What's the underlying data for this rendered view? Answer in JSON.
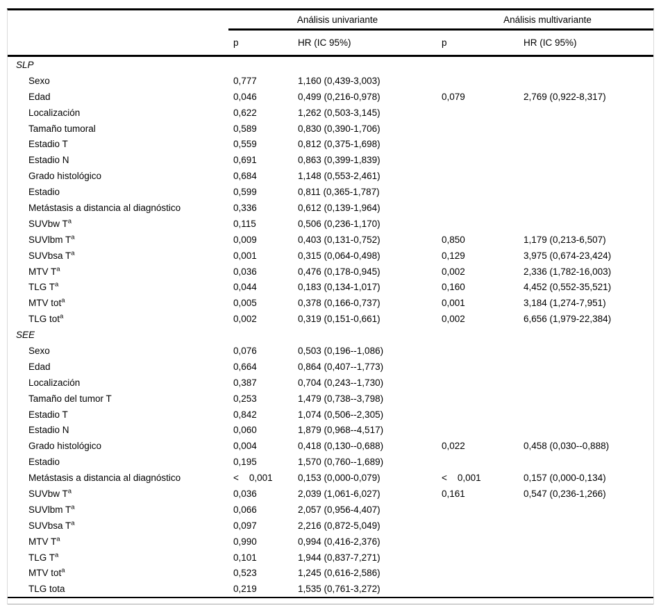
{
  "colors": {
    "text": "#000000",
    "rule": "#000000",
    "frame_side_border": "#d9d9d9",
    "bottom_thin_rule": "#a8a8a8",
    "background": "#ffffff"
  },
  "table": {
    "group_headers": [
      {
        "label": "Análisis univariante"
      },
      {
        "label": "Análisis multivariante"
      }
    ],
    "col_headers": [
      "p",
      "HR (IC 95%)",
      "p",
      "HR (IC 95%)"
    ],
    "sections": [
      {
        "title": "SLP",
        "rows": [
          {
            "label": "Sexo",
            "sup": "",
            "p_uni": "0,777",
            "hr_uni": "1,160 (0,439-3,003)",
            "p_multi": "",
            "hr_multi": ""
          },
          {
            "label": "Edad",
            "sup": "",
            "p_uni": "0,046",
            "hr_uni": "0,499 (0,216-0,978)",
            "p_multi": "0,079",
            "hr_multi": "2,769 (0,922-8,317)"
          },
          {
            "label": "Localización",
            "sup": "",
            "p_uni": "0,622",
            "hr_uni": "1,262 (0,503-3,145)",
            "p_multi": "",
            "hr_multi": ""
          },
          {
            "label": "Tamaño tumoral",
            "sup": "",
            "p_uni": "0,589",
            "hr_uni": "0,830 (0,390-1,706)",
            "p_multi": "",
            "hr_multi": ""
          },
          {
            "label": "Estadio T",
            "sup": "",
            "p_uni": "0,559",
            "hr_uni": "0,812 (0,375-1,698)",
            "p_multi": "",
            "hr_multi": ""
          },
          {
            "label": "Estadio N",
            "sup": "",
            "p_uni": "0,691",
            "hr_uni": "0,863 (0,399-1,839)",
            "p_multi": "",
            "hr_multi": ""
          },
          {
            "label": "Grado histológico",
            "sup": "",
            "p_uni": "0,684",
            "hr_uni": "1,148 (0,553-2,461)",
            "p_multi": "",
            "hr_multi": ""
          },
          {
            "label": "Estadio",
            "sup": "",
            "p_uni": "0,599",
            "hr_uni": "0,811 (0,365-1,787)",
            "p_multi": "",
            "hr_multi": ""
          },
          {
            "label": "Metástasis a distancia al diagnóstico",
            "sup": "",
            "p_uni": "0,336",
            "hr_uni": "0,612 (0,139-1,964)",
            "p_multi": "",
            "hr_multi": ""
          },
          {
            "label": "SUVbw T",
            "sup": "a",
            "p_uni": "0,115",
            "hr_uni": "0,506 (0,236-1,170)",
            "p_multi": "",
            "hr_multi": ""
          },
          {
            "label": "SUVlbm T",
            "sup": "a",
            "p_uni": "0,009",
            "hr_uni": "0,403 (0,131-0,752)",
            "p_multi": "0,850",
            "hr_multi": "1,179 (0,213-6,507)"
          },
          {
            "label": "SUVbsa T",
            "sup": "a",
            "p_uni": "0,001",
            "hr_uni": "0,315 (0,064-0,498)",
            "p_multi": "0,129",
            "hr_multi": "3,975 (0,674-23,424)"
          },
          {
            "label": "MTV T",
            "sup": "a",
            "p_uni": "0,036",
            "hr_uni": "0,476 (0,178-0,945)",
            "p_multi": "0,002",
            "hr_multi": "2,336 (1,782-16,003)"
          },
          {
            "label": "TLG T",
            "sup": "a",
            "p_uni": "0,044",
            "hr_uni": "0,183 (0,134-1,017)",
            "p_multi": "0,160",
            "hr_multi": "4,452 (0,552-35,521)"
          },
          {
            "label": "MTV tot",
            "sup": "a",
            "p_uni": "0,005",
            "hr_uni": "0,378 (0,166-0,737)",
            "p_multi": "0,001",
            "hr_multi": "3,184 (1,274-7,951)"
          },
          {
            "label": "TLG tot",
            "sup": "a",
            "p_uni": "0,002",
            "hr_uni": "0,319 (0,151-0,661)",
            "p_multi": "0,002",
            "hr_multi": "6,656 (1,979-22,384)"
          }
        ]
      },
      {
        "title": "SEE",
        "rows": [
          {
            "label": "Sexo",
            "sup": "",
            "p_uni": "0,076",
            "hr_uni": "0,503 (0,196--1,086)",
            "p_multi": "",
            "hr_multi": ""
          },
          {
            "label": "Edad",
            "sup": "",
            "p_uni": "0,664",
            "hr_uni": "0,864 (0,407--1,773)",
            "p_multi": "",
            "hr_multi": ""
          },
          {
            "label": "Localización",
            "sup": "",
            "p_uni": "0,387",
            "hr_uni": "0,704 (0,243--1,730)",
            "p_multi": "",
            "hr_multi": ""
          },
          {
            "label": "Tamaño del tumor T",
            "sup": "",
            "p_uni": "0,253",
            "hr_uni": "1,479 (0,738--3,798)",
            "p_multi": "",
            "hr_multi": ""
          },
          {
            "label": "Estadio T",
            "sup": "",
            "p_uni": "0,842",
            "hr_uni": "1,074 (0,506--2,305)",
            "p_multi": "",
            "hr_multi": ""
          },
          {
            "label": "Estadio N",
            "sup": "",
            "p_uni": "0,060",
            "hr_uni": "1,879 (0,968--4,517)",
            "p_multi": "",
            "hr_multi": ""
          },
          {
            "label": "Grado histológico",
            "sup": "",
            "p_uni": "0,004",
            "hr_uni": "0,418 (0,130--0,688)",
            "p_multi": "0,022",
            "hr_multi": "0,458 (0,030--0,888)"
          },
          {
            "label": "Estadio",
            "sup": "",
            "p_uni": "0,195",
            "hr_uni": "1,570 (0,760--1,689)",
            "p_multi": "",
            "hr_multi": ""
          },
          {
            "label": "Metástasis a distancia al diagnóstico",
            "sup": "",
            "p_uni": "<    0,001",
            "hr_uni": "0,153 (0,000-0,079)",
            "p_multi": "<    0,001",
            "hr_multi": "0,157 (0,000-0,134)"
          },
          {
            "label": "SUVbw T",
            "sup": "a",
            "p_uni": "0,036",
            "hr_uni": "2,039 (1,061-6,027)",
            "p_multi": "0,161",
            "hr_multi": "0,547 (0,236-1,266)"
          },
          {
            "label": "SUVlbm T",
            "sup": "a",
            "p_uni": "0,066",
            "hr_uni": "2,057 (0,956-4,407)",
            "p_multi": "",
            "hr_multi": ""
          },
          {
            "label": "SUVbsa T",
            "sup": "a",
            "p_uni": "0,097",
            "hr_uni": "2,216 (0,872-5,049)",
            "p_multi": "",
            "hr_multi": ""
          },
          {
            "label": "MTV T",
            "sup": "a",
            "p_uni": "0,990",
            "hr_uni": "0,994 (0,416-2,376)",
            "p_multi": "",
            "hr_multi": ""
          },
          {
            "label": "TLG T",
            "sup": "a",
            "p_uni": "0,101",
            "hr_uni": "1,944 (0,837-7,271)",
            "p_multi": "",
            "hr_multi": ""
          },
          {
            "label": "MTV tot",
            "sup": "a",
            "p_uni": "0,523",
            "hr_uni": "1,245 (0,616-2,586)",
            "p_multi": "",
            "hr_multi": ""
          },
          {
            "label": "TLG tota",
            "sup": "",
            "p_uni": "0,219",
            "hr_uni": "1,535 (0,761-3,272)",
            "p_multi": "",
            "hr_multi": ""
          }
        ]
      }
    ]
  }
}
